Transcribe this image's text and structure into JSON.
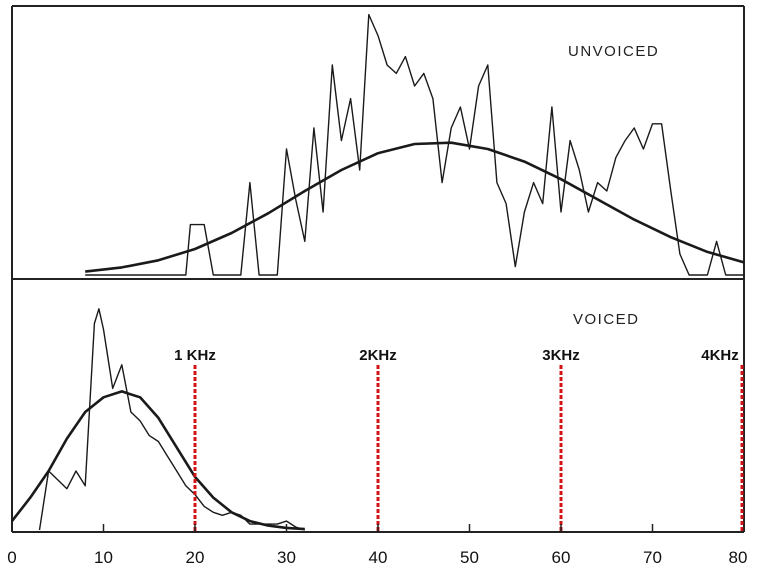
{
  "chart_data": [
    {
      "type": "line",
      "panel": "top",
      "title": "UNVOICED",
      "xlim": [
        0,
        80
      ],
      "grid": false,
      "series": [
        {
          "style": "raw",
          "x": [
            8,
            15,
            19,
            19.5,
            21,
            22,
            23,
            25,
            26,
            27,
            28,
            29,
            30,
            31,
            32,
            33,
            34,
            35,
            36,
            37,
            38,
            39,
            40,
            41,
            42,
            43,
            44,
            45,
            46,
            47,
            48,
            49,
            50,
            51,
            52,
            53,
            54,
            55,
            56,
            57,
            58,
            59,
            60,
            61,
            62,
            63,
            64,
            65,
            66,
            67,
            68,
            69,
            70,
            71,
            72,
            73,
            74,
            75,
            76,
            77,
            78,
            79,
            80
          ],
          "y": [
            0,
            0,
            0,
            0.12,
            0.12,
            0,
            0,
            0,
            0.22,
            0,
            0,
            0,
            0.3,
            0.18,
            0.08,
            0.35,
            0.15,
            0.5,
            0.32,
            0.42,
            0.25,
            0.62,
            0.57,
            0.5,
            0.48,
            0.52,
            0.45,
            0.48,
            0.42,
            0.22,
            0.35,
            0.4,
            0.3,
            0.45,
            0.5,
            0.22,
            0.17,
            0.02,
            0.15,
            0.22,
            0.17,
            0.4,
            0.15,
            0.32,
            0.25,
            0.15,
            0.22,
            0.2,
            0.28,
            0.32,
            0.35,
            0.3,
            0.36,
            0.36,
            0.2,
            0.05,
            0,
            0,
            0,
            0.08,
            0,
            0,
            0
          ],
          "values": [
            0,
            0,
            0,
            0.12,
            0.12,
            0,
            0,
            0,
            0.22,
            0,
            0,
            0,
            0.3,
            0.18,
            0.08,
            0.35,
            0.15,
            0.5,
            0.32,
            0.42,
            0.25,
            0.62,
            0.57,
            0.5,
            0.48,
            0.52,
            0.45,
            0.48,
            0.42,
            0.22,
            0.35,
            0.4,
            0.3,
            0.45,
            0.5,
            0.22,
            0.17,
            0.02,
            0.15,
            0.22,
            0.17,
            0.4,
            0.15,
            0.32,
            0.25,
            0.15,
            0.22,
            0.2,
            0.28,
            0.32,
            0.35,
            0.3,
            0.36,
            0.36,
            0.2,
            0.05,
            0,
            0,
            0,
            0.08,
            0,
            0,
            0
          ]
        },
        {
          "style": "fit",
          "model": "gaussian",
          "x": [
            8,
            12,
            16,
            20,
            24,
            28,
            32,
            36,
            40,
            44,
            48,
            52,
            56,
            60,
            64,
            68,
            72,
            76,
            80
          ],
          "y": [
            0.008,
            0.018,
            0.035,
            0.062,
            0.1,
            0.147,
            0.2,
            0.25,
            0.29,
            0.312,
            0.315,
            0.3,
            0.27,
            0.228,
            0.18,
            0.132,
            0.09,
            0.055,
            0.03
          ]
        }
      ]
    },
    {
      "type": "line",
      "panel": "bottom",
      "title": "VOICED",
      "xlim": [
        0,
        80
      ],
      "xticks": [
        0,
        10,
        20,
        30,
        40,
        50,
        60,
        70,
        80
      ],
      "tick_labels": [
        "0",
        "10",
        "20",
        "30",
        "40",
        "50",
        "60",
        "70",
        "80"
      ],
      "grid": false,
      "markers": [
        {
          "x": 20,
          "label": "1 KHz",
          "color": "#d41414"
        },
        {
          "x": 40,
          "label": "2KHz",
          "color": "#d41414"
        },
        {
          "x": 60,
          "label": "3KHz",
          "color": "#d41414"
        },
        {
          "x": 80,
          "label": "4KHz",
          "color": "#d41414"
        }
      ],
      "series": [
        {
          "style": "raw",
          "x": [
            3,
            4,
            5,
            6,
            7,
            8,
            9,
            9.5,
            10,
            11,
            12,
            13,
            14,
            15,
            16,
            17,
            18,
            19,
            20,
            21,
            22,
            23,
            24,
            25,
            26,
            27,
            28,
            29,
            30,
            31,
            32
          ],
          "y": [
            0,
            0.2,
            0.17,
            0.14,
            0.2,
            0.15,
            0.7,
            0.75,
            0.68,
            0.48,
            0.56,
            0.4,
            0.37,
            0.32,
            0.3,
            0.25,
            0.2,
            0.15,
            0.12,
            0.08,
            0.06,
            0.05,
            0.06,
            0.05,
            0.02,
            0.02,
            0.02,
            0.02,
            0.03,
            0.01,
            0
          ],
          "values": [
            0,
            0.2,
            0.17,
            0.14,
            0.2,
            0.15,
            0.7,
            0.75,
            0.68,
            0.48,
            0.56,
            0.4,
            0.37,
            0.32,
            0.3,
            0.25,
            0.2,
            0.15,
            0.12,
            0.08,
            0.06,
            0.05,
            0.06,
            0.05,
            0.02,
            0.02,
            0.02,
            0.02,
            0.03,
            0.01,
            0
          ]
        },
        {
          "style": "fit",
          "model": "gaussian",
          "x": [
            0,
            2,
            4,
            6,
            8,
            10,
            12,
            14,
            16,
            18,
            20,
            22,
            24,
            26,
            28,
            30,
            32
          ],
          "y": [
            0.03,
            0.11,
            0.2,
            0.31,
            0.4,
            0.45,
            0.47,
            0.45,
            0.38,
            0.28,
            0.18,
            0.11,
            0.06,
            0.03,
            0.015,
            0.007,
            0.003
          ]
        }
      ]
    }
  ]
}
